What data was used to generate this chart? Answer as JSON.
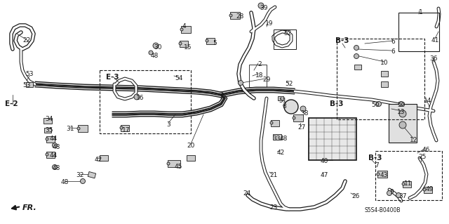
{
  "bg_color": "#ffffff",
  "line_color": "#1a1a1a",
  "diagram_code": "S5S4-B0400B",
  "label_fontsize": 6.5,
  "bold_label_fontsize": 7.5,
  "tube_lw": 3.5,
  "tube_inner_lw": 2.0,
  "pipe_lw": 1.2
}
